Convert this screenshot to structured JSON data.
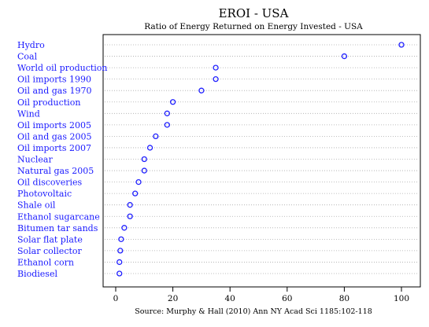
{
  "chart_data": {
    "type": "scatter",
    "title": "EROI - USA",
    "subtitle": "Ratio of Energy Returned on Energy Invested - USA",
    "source": "Source: Murphy & Hall (2010) Ann NY Acad Sci 1185:102-118",
    "xlabel": "",
    "ylabel": "",
    "xlim": [
      0,
      100
    ],
    "xticks": [
      "0",
      "20",
      "40",
      "60",
      "80",
      "100"
    ],
    "grid": true,
    "grid_style": "dotted horizontal",
    "point_color": "#2020ff",
    "label_color": "#1a1aff",
    "categories": [
      "Hydro",
      "Coal",
      "World oil production",
      "Oil imports 1990",
      "Oil and gas 1970",
      "Oil production",
      "Wind",
      "Oil imports 2005",
      "Oil and gas 2005",
      "Oil imports 2007",
      "Nuclear",
      "Natural gas 2005",
      "Oil discoveries",
      "Photovoltaic",
      "Shale oil",
      "Ethanol sugarcane",
      "Bitumen tar sands",
      "Solar flat plate",
      "Solar collector",
      "Ethanol corn",
      "Biodiesel"
    ],
    "values": [
      100,
      80,
      35,
      35,
      30,
      20,
      18,
      18,
      14,
      12,
      10,
      10,
      8,
      6.8,
      5,
      5,
      3,
      1.9,
      1.6,
      1.3,
      1.3
    ]
  }
}
